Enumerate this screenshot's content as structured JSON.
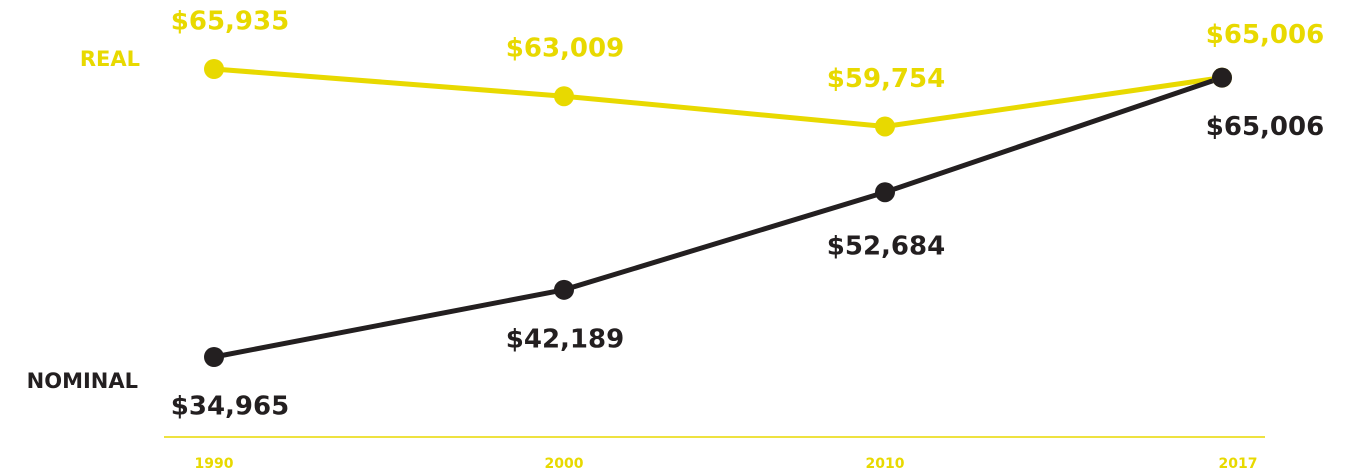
{
  "chart_data": {
    "type": "line",
    "categories": [
      "1990",
      "2000",
      "2010",
      "2017"
    ],
    "series": [
      {
        "name": "REAL",
        "color": "#e8d900",
        "values": [
          65935,
          63009,
          59754,
          65006
        ],
        "value_labels": [
          "$65,935",
          "$63,009",
          "$59,754",
          "$65,006"
        ]
      },
      {
        "name": "NOMINAL",
        "color": "#231f20",
        "values": [
          34965,
          42189,
          52684,
          65006
        ],
        "value_labels": [
          "$34,965",
          "$42,189",
          "$52,684",
          "$65,006"
        ]
      }
    ]
  }
}
